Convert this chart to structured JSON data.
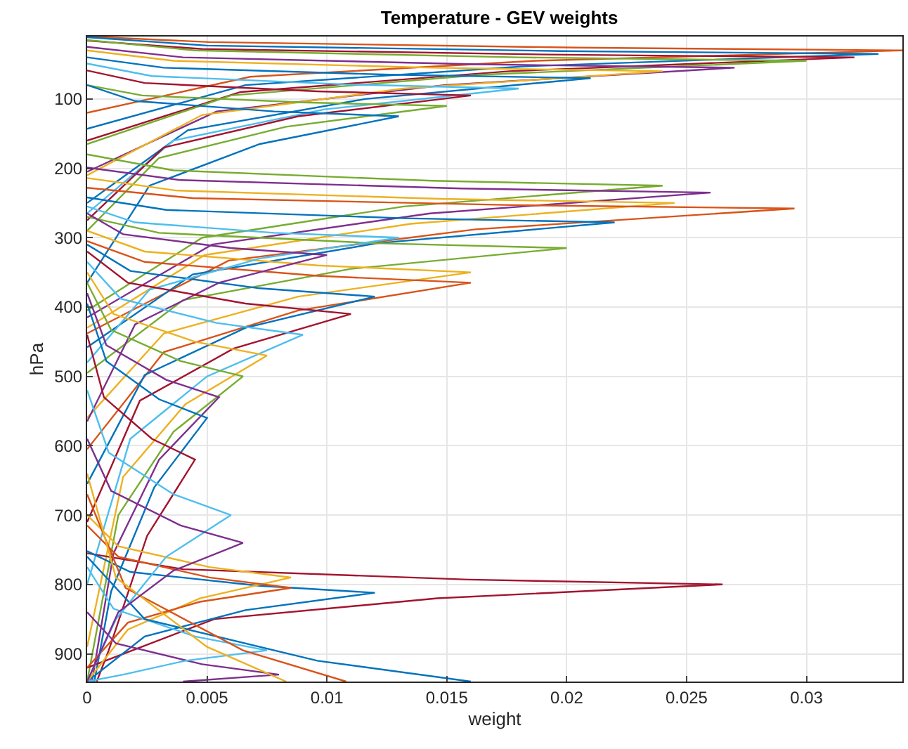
{
  "chart_data": {
    "type": "line",
    "title": "Temperature - GEV weights",
    "xlabel": "weight",
    "ylabel": "hPa",
    "xlim": [
      0,
      0.034
    ],
    "ylim": [
      940,
      10
    ],
    "xticks": [
      0,
      0.005,
      0.01,
      0.015,
      0.02,
      0.025,
      0.03
    ],
    "yticks": [
      100,
      200,
      300,
      400,
      500,
      600,
      700,
      800,
      900
    ],
    "grid": true,
    "marker": "none",
    "line_style": "solid",
    "series": [
      {
        "color": "#d95319",
        "x": [
          0,
          0.0051,
          0.0204,
          0.034,
          0.0187,
          0.0068,
          0
        ],
        "values": [
          10,
          18,
          26,
          30,
          45,
          68,
          120
        ]
      },
      {
        "color": "#0072bd",
        "x": [
          0,
          0.005,
          0.0198,
          0.033,
          0.0182,
          0.0066,
          0
        ],
        "values": [
          11,
          23,
          31,
          35,
          53,
          80,
          143
        ]
      },
      {
        "color": "#a2142f",
        "x": [
          0,
          0.0048,
          0.0192,
          0.032,
          0.0176,
          0.0064,
          0
        ],
        "values": [
          16,
          28,
          36,
          40,
          60,
          90,
          160
        ]
      },
      {
        "color": "#77ac30",
        "x": [
          0,
          0.0045,
          0.018,
          0.03,
          0.0165,
          0.006,
          0
        ],
        "values": [
          15,
          30,
          40,
          45,
          65,
          95,
          165
        ]
      },
      {
        "color": "#7e2f8e",
        "x": [
          0,
          0.004,
          0.0162,
          0.027,
          0.0149,
          0.0054,
          0
        ],
        "values": [
          25,
          40,
          50,
          55,
          80,
          118,
          205
        ]
      },
      {
        "color": "#edb120",
        "x": [
          0,
          0.0036,
          0.0144,
          0.024,
          0.0132,
          0.0048,
          0
        ],
        "values": [
          30,
          45,
          55,
          60,
          85,
          123,
          210
        ]
      },
      {
        "color": "#0072bd",
        "x": [
          0,
          0.0032,
          0.0126,
          0.021,
          0.0116,
          0.0042,
          0
        ],
        "values": [
          40,
          55,
          65,
          70,
          100,
          145,
          250
        ]
      },
      {
        "color": "#4dbeee",
        "x": [
          0,
          0.0027,
          0.0108,
          0.018,
          0.0099,
          0.0036,
          0
        ],
        "values": [
          49,
          67,
          79,
          85,
          115,
          160,
          265
        ]
      },
      {
        "color": "#a2142f",
        "x": [
          0,
          0.0024,
          0.0096,
          0.016,
          0.0088,
          0.0032,
          0
        ],
        "values": [
          59,
          77,
          89,
          95,
          125,
          170,
          275
        ]
      },
      {
        "color": "#77ac30",
        "x": [
          0,
          0.0023,
          0.009,
          0.015,
          0.0083,
          0.003,
          0
        ],
        "values": [
          80,
          95,
          105,
          110,
          140,
          185,
          290
        ]
      },
      {
        "color": "#0072bd",
        "x": [
          0,
          0.002,
          0.0078,
          0.013,
          0.0072,
          0.0026,
          0
        ],
        "values": [
          80,
          103,
          118,
          125,
          165,
          225,
          365
        ]
      },
      {
        "color": "#77ac30",
        "x": [
          0,
          0.0036,
          0.0144,
          0.024,
          0.0132,
          0.0048,
          0
        ],
        "values": [
          180,
          203,
          218,
          225,
          255,
          300,
          405
        ]
      },
      {
        "color": "#7e2f8e",
        "x": [
          0,
          0.0039,
          0.0156,
          0.026,
          0.0143,
          0.0052,
          0
        ],
        "values": [
          199,
          217,
          229,
          235,
          265,
          310,
          415
        ]
      },
      {
        "color": "#edb120",
        "x": [
          0,
          0.0037,
          0.0147,
          0.0245,
          0.0135,
          0.0049,
          0
        ],
        "values": [
          214,
          232,
          244,
          250,
          280,
          325,
          430
        ]
      },
      {
        "color": "#d95319",
        "x": [
          0,
          0.0044,
          0.0177,
          0.0295,
          0.0162,
          0.0059,
          0
        ],
        "values": [
          228,
          243,
          253,
          258,
          288,
          333,
          438
        ]
      },
      {
        "color": "#0072bd",
        "x": [
          0,
          0.0033,
          0.0132,
          0.022,
          0.0121,
          0.0044,
          0
        ],
        "values": [
          242,
          260,
          272,
          278,
          308,
          353,
          458
        ]
      },
      {
        "color": "#77ac30",
        "x": [
          0,
          0.003,
          0.012,
          0.02,
          0.011,
          0.004,
          0
        ],
        "values": [
          270,
          293,
          308,
          315,
          345,
          390,
          495
        ]
      },
      {
        "color": "#edb120",
        "x": [
          0,
          0.0024,
          0.0096,
          0.016,
          0.0088,
          0.0032,
          0
        ],
        "values": [
          290,
          320,
          340,
          350,
          385,
          438,
          560
        ]
      },
      {
        "color": "#d95319",
        "x": [
          0,
          0.0024,
          0.0096,
          0.016,
          0.0088,
          0.0032,
          0
        ],
        "values": [
          305,
          335,
          355,
          365,
          405,
          465,
          605
        ]
      },
      {
        "color": "#0072bd",
        "x": [
          0,
          0.0018,
          0.0072,
          0.012,
          0.0066,
          0.0024,
          0
        ],
        "values": [
          310,
          348,
          373,
          385,
          430,
          498,
          655
        ]
      },
      {
        "color": "#4dbeee",
        "x": [
          0,
          0.002,
          0.0078,
          0.013,
          0.0072,
          0.0026,
          0
        ],
        "values": [
          255,
          278,
          293,
          300,
          330,
          375,
          480
        ]
      },
      {
        "color": "#7e2f8e",
        "x": [
          0,
          0.0015,
          0.006,
          0.01,
          0.0055,
          0.002,
          0
        ],
        "values": [
          265,
          295,
          315,
          325,
          365,
          425,
          565
        ]
      },
      {
        "color": "#a2142f",
        "x": [
          0,
          0.0017,
          0.0066,
          0.011,
          0.0061,
          0.0022,
          0
        ],
        "values": [
          320,
          365,
          395,
          410,
          460,
          535,
          710
        ]
      },
      {
        "color": "#4dbeee",
        "x": [
          0,
          0.0014,
          0.0054,
          0.009,
          0.005,
          0.0018,
          0
        ],
        "values": [
          335,
          388,
          423,
          440,
          500,
          590,
          800
        ]
      },
      {
        "color": "#edb120",
        "x": [
          0,
          0.0011,
          0.0045,
          0.0075,
          0.0041,
          0.0015,
          0
        ],
        "values": [
          350,
          410,
          450,
          470,
          540,
          645,
          890
        ]
      },
      {
        "color": "#77ac30",
        "x": [
          0,
          0.001,
          0.0039,
          0.0065,
          0.0036,
          0.0013,
          0
        ],
        "values": [
          365,
          433,
          478,
          500,
          580,
          700,
          940
        ]
      },
      {
        "color": "#7e2f8e",
        "x": [
          0,
          0.0008,
          0.0033,
          0.0055,
          0.003,
          0.0011,
          0.0002
        ],
        "values": [
          380,
          455,
          505,
          530,
          620,
          755,
          940
        ]
      },
      {
        "color": "#0072bd",
        "x": [
          0,
          0.0008,
          0.003,
          0.005,
          0.0028,
          0.001,
          0.0003
        ],
        "values": [
          395,
          478,
          533,
          560,
          660,
          810,
          940
        ]
      },
      {
        "color": "#a2142f",
        "x": [
          0,
          0.0007,
          0.0027,
          0.0045,
          0.0025,
          0.0009,
          0.0004
        ],
        "values": [
          440,
          530,
          590,
          620,
          730,
          895,
          940
        ]
      },
      {
        "color": "#a2142f",
        "x": [
          0,
          0.004,
          0.0159,
          0.0265,
          0.0146,
          0.0053,
          0
        ],
        "values": [
          755,
          778,
          793,
          800,
          820,
          850,
          920
        ]
      },
      {
        "color": "#0072bd",
        "x": [
          0,
          0.0018,
          0.0072,
          0.012,
          0.0066,
          0.0024,
          0
        ],
        "values": [
          752,
          782,
          802,
          812,
          837,
          875,
          940
        ]
      },
      {
        "color": "#edb120",
        "x": [
          0,
          0.0013,
          0.0051,
          0.0085,
          0.0047,
          0.0017,
          0
        ],
        "values": [
          700,
          745,
          775,
          790,
          820,
          865,
          940
        ]
      },
      {
        "color": "#d95319",
        "x": [
          0,
          0.0013,
          0.0051,
          0.0085,
          0.0047,
          0.0017,
          0
        ],
        "values": [
          715,
          760,
          790,
          805,
          825,
          855,
          920
        ]
      },
      {
        "color": "#7e2f8e",
        "x": [
          0,
          0.0012,
          0.0048,
          0.008,
          0.004
        ],
        "values": [
          840,
          885,
          915,
          930,
          940
        ]
      },
      {
        "color": "#4dbeee",
        "x": [
          0,
          0.0011,
          0.0045,
          0.0075,
          0.0041,
          0.0015,
          0
        ],
        "values": [
          775,
          835,
          875,
          895,
          910,
          930,
          940
        ]
      },
      {
        "color": "#0072bd",
        "x": [
          0,
          0.0024,
          0.0096,
          0.016
        ],
        "values": [
          760,
          850,
          910,
          940
        ]
      },
      {
        "color": "#d95319",
        "x": [
          0,
          0.0016,
          0.0065,
          0.0108
        ],
        "values": [
          670,
          805,
          895,
          940
        ]
      },
      {
        "color": "#edb120",
        "x": [
          0,
          0.0012,
          0.005,
          0.0083
        ],
        "values": [
          640,
          790,
          890,
          940
        ]
      },
      {
        "color": "#4dbeee",
        "x": [
          0,
          0.0009,
          0.0036,
          0.006,
          0.0033,
          0.0012,
          0
        ],
        "values": [
          520,
          610,
          670,
          700,
          760,
          850,
          940
        ]
      },
      {
        "color": "#7e2f8e",
        "x": [
          0,
          0.001,
          0.0039,
          0.0065,
          0.0036,
          0.0013,
          0
        ],
        "values": [
          590,
          665,
          715,
          740,
          780,
          840,
          940
        ]
      }
    ]
  }
}
